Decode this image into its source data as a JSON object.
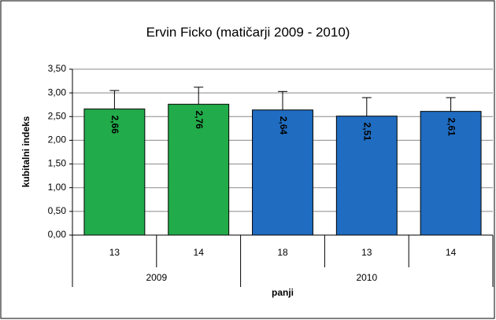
{
  "chart_data": {
    "type": "bar",
    "title": "Ervin Ficko (matičarji 2009 - 2010)",
    "y_label": "kubitalni indeks",
    "x_label": "panji",
    "categories": [
      "13",
      "14",
      "18",
      "13",
      "14"
    ],
    "groups": [
      {
        "name": "2009",
        "count": 2
      },
      {
        "name": "2010",
        "count": 3
      }
    ],
    "values": [
      2.66,
      2.76,
      2.64,
      2.51,
      2.61
    ],
    "value_labels": [
      "2,66",
      "2,76",
      "2,64",
      "2,51",
      "2,61"
    ],
    "errors": [
      0.39,
      0.36,
      0.39,
      0.39,
      0.29
    ],
    "colors": [
      "#22ab4a",
      "#22ab4a",
      "#1f6cc0",
      "#1f6cc0",
      "#1f6cc0"
    ],
    "ylim": [
      0,
      3.5
    ],
    "yticks": [
      {
        "value": 0,
        "label": "0,00"
      },
      {
        "value": 0.5,
        "label": "0,50"
      },
      {
        "value": 1,
        "label": "1,00"
      },
      {
        "value": 1.5,
        "label": "1,50"
      },
      {
        "value": 2,
        "label": "2,00"
      },
      {
        "value": 2.5,
        "label": "2,50"
      },
      {
        "value": 3,
        "label": "3,00"
      },
      {
        "value": 3.5,
        "label": "3,50"
      }
    ],
    "grid": true
  }
}
